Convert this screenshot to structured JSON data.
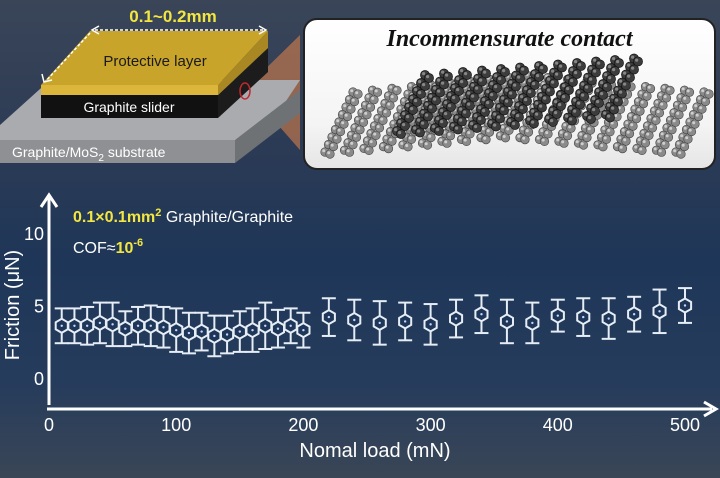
{
  "schematic": {
    "dimension_label": "0.1~0.2mm",
    "protective_layer_label": "Protective layer",
    "slider_label": "Graphite slider",
    "substrate_label_prefix": "Graphite/MoS",
    "substrate_label_sub": "2",
    "substrate_label_suffix": " substrate"
  },
  "inset": {
    "title": "Incommensurate contact"
  },
  "annotations": {
    "size_highlight": "0.1×0.1mm",
    "size_sup": "2",
    "pair_label": " Graphite/Graphite",
    "cof_prefix": "COF≈",
    "cof_value": "10",
    "cof_exp": "-6"
  },
  "colors": {
    "accent_yellow": "#f2e640",
    "gold_layer": "#c9a42a",
    "background_blue": "#1e3658",
    "axis": "#ffffff"
  },
  "chart_data": {
    "type": "scatter",
    "title": "",
    "xlabel": "Nomal load (mN)",
    "ylabel": "Friction (μN)",
    "xlim": [
      0,
      500
    ],
    "ylim": [
      0,
      10
    ],
    "xticks": [
      0,
      100,
      200,
      300,
      400,
      500
    ],
    "yticks": [
      0,
      5,
      10
    ],
    "grid": false,
    "legend": "none",
    "marker": "hexagon with error bars",
    "series": [
      {
        "name": "Graphite/Graphite",
        "x": [
          10,
          20,
          30,
          40,
          50,
          60,
          70,
          80,
          90,
          100,
          110,
          120,
          130,
          140,
          150,
          160,
          170,
          180,
          190,
          200,
          220,
          240,
          260,
          280,
          300,
          320,
          340,
          360,
          380,
          400,
          420,
          440,
          460,
          480,
          500
        ],
        "y": [
          3.6,
          3.6,
          3.6,
          3.8,
          3.7,
          3.4,
          3.6,
          3.6,
          3.5,
          3.3,
          3.1,
          3.2,
          2.9,
          3.0,
          3.2,
          3.3,
          3.6,
          3.4,
          3.6,
          3.3,
          4.2,
          4.0,
          3.8,
          3.9,
          3.7,
          4.1,
          4.4,
          3.9,
          3.8,
          4.3,
          4.2,
          4.1,
          4.4,
          4.6,
          5.0
        ],
        "error": [
          1.2,
          1.2,
          1.3,
          1.4,
          1.5,
          1.2,
          1.3,
          1.4,
          1.4,
          1.5,
          1.4,
          1.3,
          1.4,
          1.3,
          1.4,
          1.5,
          1.6,
          1.3,
          1.2,
          1.2,
          1.3,
          1.4,
          1.5,
          1.3,
          1.4,
          1.3,
          1.3,
          1.5,
          1.4,
          1.1,
          1.3,
          1.4,
          1.2,
          1.5,
          1.2
        ]
      }
    ]
  }
}
